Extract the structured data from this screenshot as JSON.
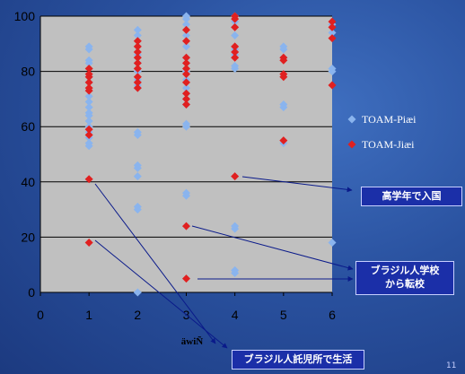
{
  "chart_data": {
    "type": "scatter",
    "xlabel": "äwiÑ",
    "xlim": [
      0,
      6
    ],
    "ylim": [
      0,
      100
    ],
    "xticks": [
      "0",
      "1",
      "2",
      "3",
      "4",
      "5",
      "6"
    ],
    "yticks": [
      "0",
      "20",
      "40",
      "60",
      "80",
      "100"
    ],
    "grid": "horizontal",
    "legend_position": "right",
    "series": [
      {
        "name": "TOAM-Piæi",
        "color": "#8ab4ee",
        "marker": "diamond",
        "points": [
          [
            1,
            89
          ],
          [
            1,
            88
          ],
          [
            1,
            84
          ],
          [
            1,
            83
          ],
          [
            1,
            78
          ],
          [
            1,
            76
          ],
          [
            1,
            71
          ],
          [
            1,
            69
          ],
          [
            1,
            67
          ],
          [
            1,
            65
          ],
          [
            1,
            64
          ],
          [
            1,
            62
          ],
          [
            1,
            60
          ],
          [
            1,
            58
          ],
          [
            1,
            56
          ],
          [
            1,
            54
          ],
          [
            1,
            53
          ],
          [
            2,
            95
          ],
          [
            2,
            93
          ],
          [
            2,
            89
          ],
          [
            2,
            86
          ],
          [
            2,
            83
          ],
          [
            2,
            80
          ],
          [
            2,
            77
          ],
          [
            2,
            75
          ],
          [
            2,
            74
          ],
          [
            2,
            58
          ],
          [
            2,
            57
          ],
          [
            2,
            46
          ],
          [
            2,
            45
          ],
          [
            2,
            42
          ],
          [
            2,
            31
          ],
          [
            2,
            30
          ],
          [
            2,
            0
          ],
          [
            3,
            100
          ],
          [
            3,
            99
          ],
          [
            3,
            97
          ],
          [
            3,
            93
          ],
          [
            3,
            89
          ],
          [
            3,
            85
          ],
          [
            3,
            83
          ],
          [
            3,
            80
          ],
          [
            3,
            77
          ],
          [
            3,
            74
          ],
          [
            3,
            72
          ],
          [
            3,
            70
          ],
          [
            3,
            68
          ],
          [
            3,
            61
          ],
          [
            3,
            60
          ],
          [
            3,
            36
          ],
          [
            3,
            35
          ],
          [
            4,
            100
          ],
          [
            4,
            98
          ],
          [
            4,
            96
          ],
          [
            4,
            93
          ],
          [
            4,
            88
          ],
          [
            4,
            86
          ],
          [
            4,
            82
          ],
          [
            4,
            81
          ],
          [
            4,
            24
          ],
          [
            4,
            23
          ],
          [
            4,
            8
          ],
          [
            4,
            7
          ],
          [
            5,
            89
          ],
          [
            5,
            88
          ],
          [
            5,
            85
          ],
          [
            5,
            68
          ],
          [
            5,
            67
          ],
          [
            5,
            54
          ],
          [
            6,
            97
          ],
          [
            6,
            94
          ],
          [
            6,
            81
          ],
          [
            6,
            80
          ],
          [
            6,
            18
          ]
        ]
      },
      {
        "name": "TOAM-Jiæi",
        "color": "#e02020",
        "marker": "diamond",
        "points": [
          [
            1,
            81
          ],
          [
            1,
            79
          ],
          [
            1,
            78
          ],
          [
            1,
            76
          ],
          [
            1,
            74
          ],
          [
            1,
            73
          ],
          [
            1,
            59
          ],
          [
            1,
            57
          ],
          [
            1,
            41
          ],
          [
            1,
            18
          ],
          [
            2,
            91
          ],
          [
            2,
            89
          ],
          [
            2,
            87
          ],
          [
            2,
            85
          ],
          [
            2,
            83
          ],
          [
            2,
            81
          ],
          [
            2,
            78
          ],
          [
            2,
            76
          ],
          [
            2,
            74
          ],
          [
            3,
            95
          ],
          [
            3,
            91
          ],
          [
            3,
            85
          ],
          [
            3,
            83
          ],
          [
            3,
            81
          ],
          [
            3,
            79
          ],
          [
            3,
            76
          ],
          [
            3,
            72
          ],
          [
            3,
            70
          ],
          [
            3,
            68
          ],
          [
            3,
            24
          ],
          [
            3,
            5
          ],
          [
            4,
            100
          ],
          [
            4,
            99
          ],
          [
            4,
            96
          ],
          [
            4,
            89
          ],
          [
            4,
            87
          ],
          [
            4,
            85
          ],
          [
            4,
            42
          ],
          [
            5,
            85
          ],
          [
            5,
            84
          ],
          [
            5,
            79
          ],
          [
            5,
            78
          ],
          [
            5,
            55
          ],
          [
            6,
            98
          ],
          [
            6,
            96
          ],
          [
            6,
            92
          ],
          [
            6,
            75
          ]
        ]
      }
    ],
    "annotations": [
      {
        "text": "高学年で入国"
      },
      {
        "text_lines": [
          "ブラジル人学校",
          "から転校"
        ]
      },
      {
        "text": "ブラジル人託児所で生活"
      }
    ]
  },
  "slide": {
    "number": "11"
  }
}
